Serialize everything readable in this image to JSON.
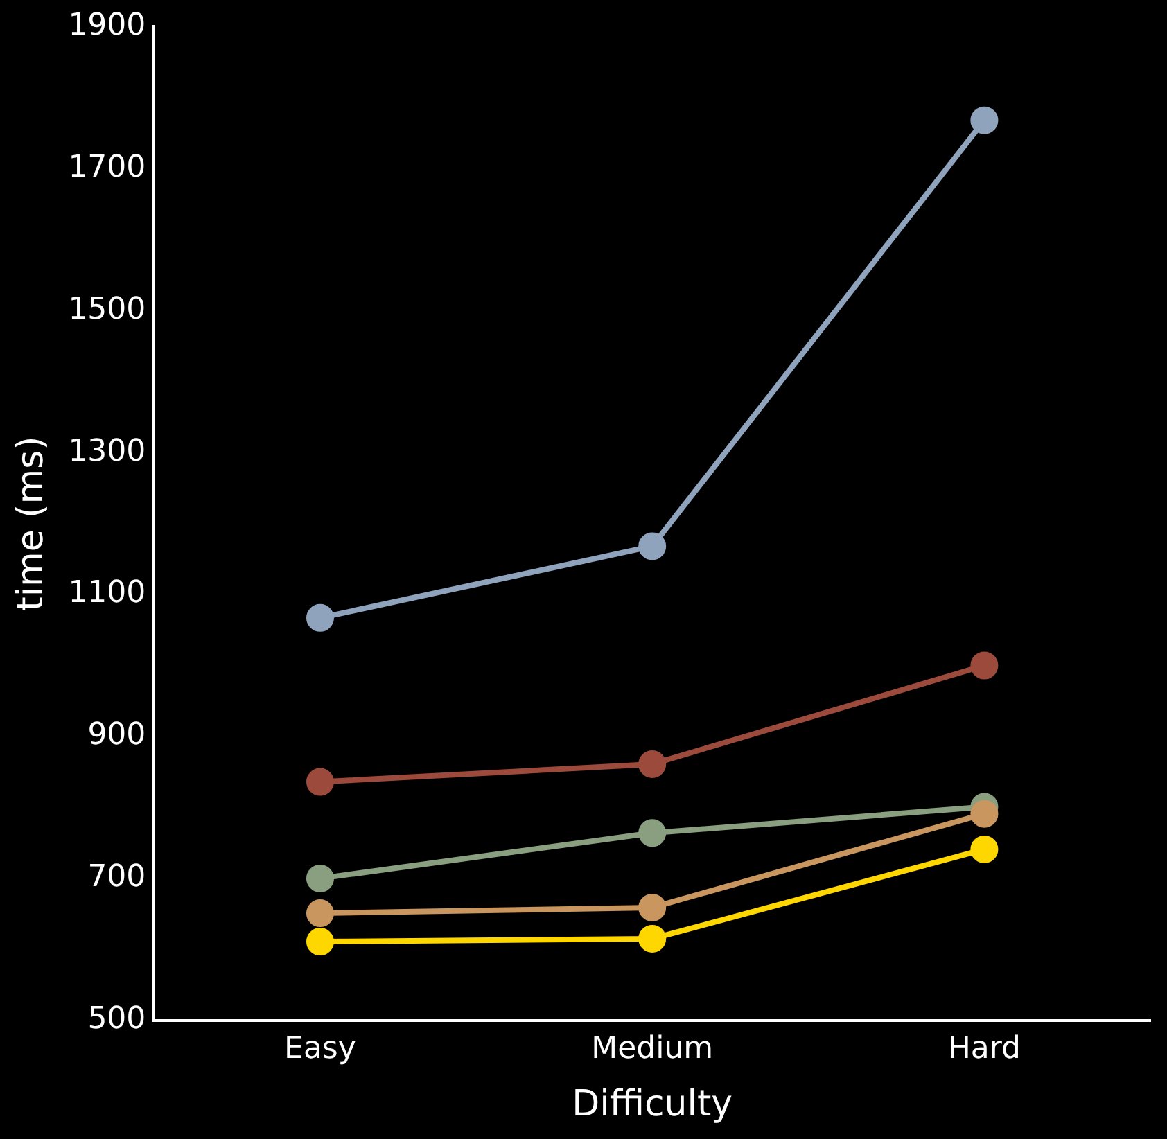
{
  "chart_data": {
    "type": "line",
    "xlabel": "Difficulty",
    "ylabel": "time (ms)",
    "categories": [
      "Easy",
      "Medium",
      "Hard"
    ],
    "series": [
      {
        "color": "#8fa3bd",
        "values": [
          1067,
          1168,
          1768
        ]
      },
      {
        "color": "#9b4a3c",
        "values": [
          836,
          861,
          1000
        ]
      },
      {
        "color": "#8a9e80",
        "values": [
          700,
          764,
          801
        ]
      },
      {
        "color": "#c8965e",
        "values": [
          651,
          659,
          791
        ]
      },
      {
        "color": "#ffd700",
        "values": [
          611,
          615,
          741
        ]
      }
    ],
    "ylim": [
      500,
      1900
    ],
    "yticks": [
      500,
      700,
      900,
      1100,
      1300,
      1500,
      1700,
      1900
    ],
    "grid": false,
    "legend": false,
    "marker": "circle",
    "line_style": "solid"
  }
}
